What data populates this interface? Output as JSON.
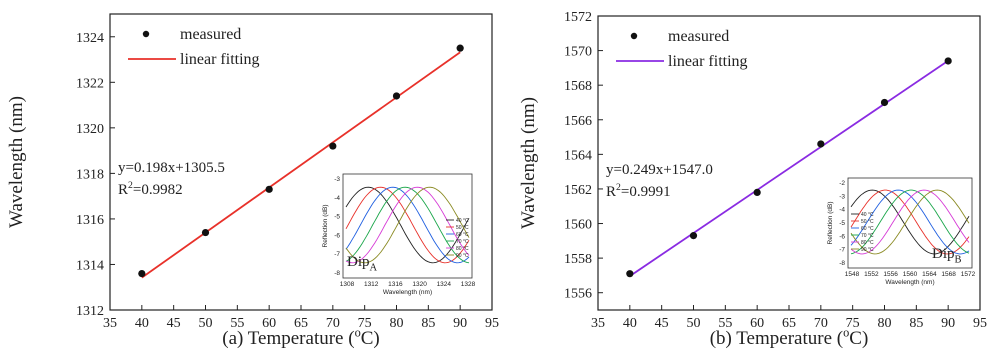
{
  "chart_data": [
    {
      "type": "scatter",
      "panel": "a",
      "xlabel_prefix": "(a) Temperature (",
      "xlabel_sup": "o",
      "xlabel_suffix": "C)",
      "ylabel": "Wavelength (nm)",
      "xlim": [
        35,
        95
      ],
      "ylim": [
        1312,
        1325
      ],
      "xticks": [
        "35",
        "40",
        "45",
        "50",
        "55",
        "60",
        "65",
        "70",
        "75",
        "80",
        "85",
        "90",
        "95"
      ],
      "yticks": [
        "1312",
        "1314",
        "1316",
        "1318",
        "1320",
        "1322",
        "1324"
      ],
      "series": [
        {
          "name": "measured",
          "x": [
            40,
            50,
            60,
            70,
            80,
            90
          ],
          "y": [
            1313.6,
            1315.4,
            1317.3,
            1319.2,
            1321.4,
            1323.5
          ]
        },
        {
          "name": "linear fitting",
          "slope": 0.198,
          "intercept": 1305.5,
          "x": [
            40,
            90
          ]
        }
      ],
      "equation": "y=0.198x+1305.5",
      "r2_prefix": "R",
      "r2_sup": "2",
      "r2_value": "=0.9982",
      "fit_color": "#e8312a",
      "legend_position": "top-left",
      "inset": {
        "label": "Dip",
        "label_sub": "A",
        "xlabel": "Wavelength (nm)",
        "ylabel": "Reflection (dB)",
        "xticks": [
          "1308",
          "1312",
          "1316",
          "1320",
          "1324",
          "1328"
        ],
        "yticks": [
          "-3",
          "-4",
          "-5",
          "-6",
          "-7",
          "-8"
        ],
        "legend": [
          "40 °C",
          "50 °C",
          "60 °C",
          "70 °C",
          "80 °C",
          "90 °C"
        ]
      }
    },
    {
      "type": "scatter",
      "panel": "b",
      "xlabel_prefix": "(b) Temperature (",
      "xlabel_sup": "o",
      "xlabel_suffix": "C)",
      "ylabel": "Wavelength (nm)",
      "xlim": [
        35,
        95
      ],
      "ylim": [
        1555,
        1572
      ],
      "xticks": [
        "35",
        "40",
        "45",
        "50",
        "55",
        "60",
        "65",
        "70",
        "75",
        "80",
        "85",
        "90",
        "95"
      ],
      "yticks": [
        "1556",
        "1558",
        "1560",
        "1562",
        "1564",
        "1566",
        "1568",
        "1570",
        "1572"
      ],
      "series": [
        {
          "name": "measured",
          "x": [
            40,
            50,
            60,
            70,
            80,
            90
          ],
          "y": [
            1557.1,
            1559.3,
            1561.8,
            1564.6,
            1567.0,
            1569.4
          ]
        },
        {
          "name": "linear fitting",
          "slope": 0.249,
          "intercept": 1547.0,
          "x": [
            40,
            90
          ]
        }
      ],
      "equation": "y=0.249x+1547.0",
      "r2_prefix": "R",
      "r2_sup": "2",
      "r2_value": "=0.9991",
      "fit_color": "#8a2be2",
      "legend_position": "top-left",
      "inset": {
        "label": "Dip",
        "label_sub": "B",
        "xlabel": "Wavelength (nm)",
        "ylabel": "Reflection (dB)",
        "xticks": [
          "1548",
          "1552",
          "1556",
          "1560",
          "1564",
          "1568",
          "1572"
        ],
        "yticks": [
          "-2",
          "-3",
          "-4",
          "-5",
          "-6",
          "-7",
          "-8"
        ],
        "legend": [
          "40 °C",
          "50 °C",
          "60 °C",
          "70 °C",
          "80 °C",
          "90 °C"
        ]
      }
    }
  ],
  "inset_colors": [
    "#222222",
    "#e8312a",
    "#1f5fe0",
    "#1aa64a",
    "#d63ad6",
    "#8a8a22"
  ]
}
